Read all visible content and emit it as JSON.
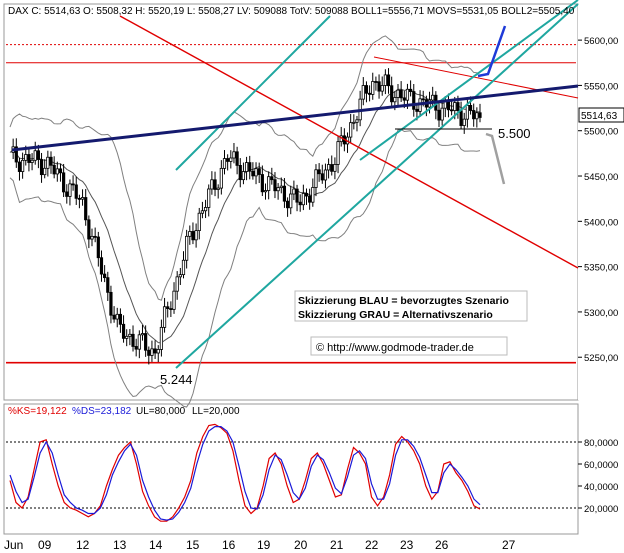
{
  "header": {
    "instrument": "DAX C",
    "close": "5514,63",
    "open": "5508,32",
    "high": "5520,19",
    "low": "5508,27",
    "lv": "509088",
    "totv": "509088",
    "boll1": "5556,71",
    "movs": "5531,05",
    "boll2": "5505,40",
    "text_full": "DAX C: 5514,63 O: 5508,32 H: 5520,19 L: 5508,27 LV: 509088 TotV: 509088 BOLL1=5556,71 MOVS=5531,05 BOLL2=5505,40"
  },
  "last_price_badge": "5514,63",
  "annotations": {
    "low_label": "5.244",
    "support_label": "5.500",
    "legend_blue": "Skizzierung BLAU = bevorzugtes Szenario",
    "legend_grey": "Skizzierung GRAU = Alternativszenario",
    "copyright": "© http://www.godmode-trader.de"
  },
  "colors": {
    "candle": "#000000",
    "red_line": "#e00000",
    "teal_channel": "#1fa7a0",
    "navy_trend": "#141a6e",
    "blue_scenario": "#1e3ad8",
    "grey_scenario": "#a0a0a0",
    "bollinger": "#808080",
    "stoch_k": "#e00000",
    "stoch_d": "#1a1ad8"
  },
  "chart_data": [
    {
      "type": "candlestick",
      "title": "DAX C",
      "x_tick_labels": [
        "Jun",
        "09",
        "12",
        "13",
        "14",
        "15",
        "16",
        "19",
        "20",
        "21",
        "22",
        "23",
        "26",
        "27"
      ],
      "y_tick_labels": [
        "5600,00",
        "5550,00",
        "5500,00",
        "5450,00",
        "5400,00",
        "5350,00",
        "5300,00",
        "5250,00"
      ],
      "ylim": [
        5205,
        5620
      ],
      "last": 5514.63,
      "horizontal_levels": [
        5595,
        5575,
        5244
      ],
      "support_level": 5500,
      "daily_closes": [
        {
          "day": "Jun",
          "close": 5470
        },
        {
          "day": "09",
          "close": 5465
        },
        {
          "day": "12",
          "close": 5420
        },
        {
          "day": "13",
          "close": 5280
        },
        {
          "day": "14",
          "close": 5255
        },
        {
          "day": "15",
          "close": 5385
        },
        {
          "day": "16",
          "close": 5470
        },
        {
          "day": "19",
          "close": 5445
        },
        {
          "day": "20",
          "close": 5420
        },
        {
          "day": "21",
          "close": 5470
        },
        {
          "day": "22",
          "close": 5555
        },
        {
          "day": "23",
          "close": 5535
        },
        {
          "day": "26",
          "close": 5525
        },
        {
          "day": "26",
          "close": 5514.63
        }
      ]
    },
    {
      "type": "line",
      "title": "Stochastic",
      "header": "%KS=19,122 %DS=23,182 UL=80,000 LL=20,000",
      "k_label": "%KS=19,122",
      "d_label": "%DS=23,182",
      "ul_label": "UL=80,000",
      "ll_label": "LL=20,000",
      "y_tick_labels": [
        "80,0000",
        "60,0000",
        "40,0000",
        "20,0000"
      ],
      "ylim": [
        0,
        100
      ],
      "upper": 80,
      "lower": 20,
      "series": [
        {
          "name": "%KS",
          "values": [
            45,
            25,
            20,
            30,
            55,
            80,
            82,
            60,
            40,
            25,
            20,
            18,
            15,
            12,
            15,
            22,
            40,
            55,
            68,
            75,
            80,
            60,
            35,
            22,
            12,
            8,
            8,
            12,
            20,
            30,
            45,
            70,
            85,
            95,
            96,
            93,
            88,
            72,
            45,
            22,
            15,
            20,
            40,
            65,
            70,
            60,
            40,
            25,
            28,
            45,
            65,
            70,
            60,
            45,
            30,
            32,
            55,
            75,
            70,
            60,
            30,
            22,
            30,
            50,
            78,
            85,
            80,
            72,
            60,
            40,
            28,
            35,
            60,
            62,
            52,
            45,
            35,
            22,
            19
          ]
        },
        {
          "name": "%DS",
          "values": [
            50,
            35,
            25,
            28,
            48,
            70,
            80,
            70,
            50,
            32,
            25,
            20,
            18,
            15,
            15,
            20,
            32,
            50,
            62,
            72,
            78,
            68,
            45,
            30,
            18,
            10,
            9,
            10,
            16,
            25,
            38,
            60,
            78,
            90,
            94,
            94,
            90,
            80,
            58,
            35,
            20,
            19,
            32,
            55,
            68,
            64,
            50,
            34,
            28,
            38,
            58,
            68,
            64,
            52,
            38,
            33,
            48,
            68,
            72,
            65,
            42,
            28,
            28,
            42,
            68,
            82,
            82,
            76,
            66,
            50,
            34,
            34,
            52,
            60,
            55,
            48,
            40,
            28,
            23
          ]
        }
      ]
    }
  ]
}
